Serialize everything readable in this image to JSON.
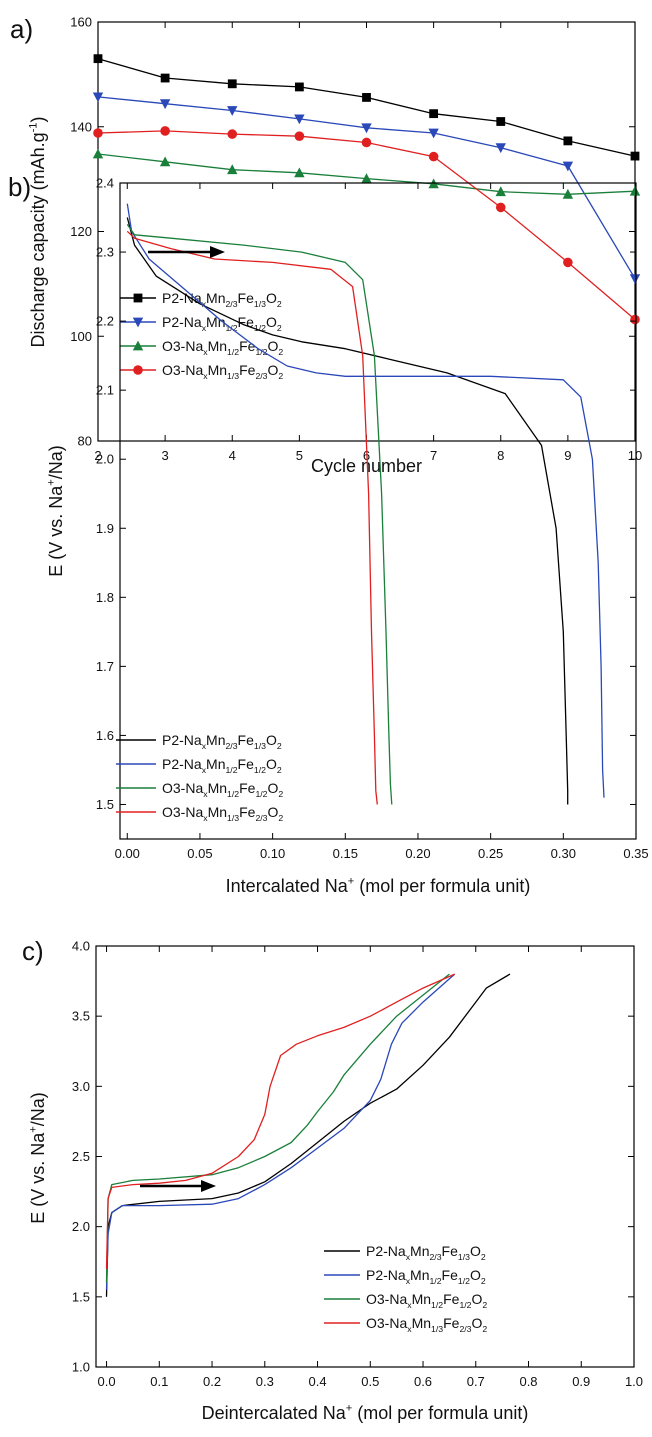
{
  "chart_data": [
    {
      "type": "line",
      "panel_label": "a)",
      "xlabel": "Cycle number",
      "ylabel": "Discharge capacity (mAh.g⁻¹)",
      "xlim": [
        2,
        10
      ],
      "ylim": [
        80,
        160
      ],
      "xticks": [
        2,
        3,
        4,
        5,
        6,
        7,
        8,
        9,
        10
      ],
      "yticks": [
        80,
        100,
        120,
        140,
        160
      ],
      "legend_position": "lower-left",
      "series": [
        {
          "name": "P2-NaₓMn₂/₃Fe₁/₃O₂",
          "color": "#000000",
          "marker": "square",
          "x": [
            2,
            3,
            4,
            5,
            6,
            7,
            8,
            9,
            10
          ],
          "y": [
            153,
            149.3,
            148.2,
            147.6,
            145.6,
            142.5,
            141.0,
            137.3,
            134.4
          ]
        },
        {
          "name": "P2-NaₓMn₁/₂Fe₁/₂O₂",
          "color": "#2a48b8",
          "marker": "triangle-down",
          "x": [
            2,
            3,
            4,
            5,
            6,
            7,
            8,
            9,
            10
          ],
          "y": [
            145.7,
            144.4,
            143.1,
            141.5,
            139.8,
            138.8,
            136.0,
            132.5,
            111.0
          ]
        },
        {
          "name": "O3-NaₓMn₁/₂Fe₁/₂O₂",
          "color": "#1a7f3a",
          "marker": "triangle-up",
          "x": [
            2,
            3,
            4,
            5,
            6,
            7,
            8,
            9,
            10
          ],
          "y": [
            134.8,
            133.3,
            131.8,
            131.2,
            130.1,
            129.1,
            127.6,
            127.1,
            127.7
          ]
        },
        {
          "name": "O3-NaₓMn₁/₃Fe₂/₃O₂",
          "color": "#e02020",
          "marker": "circle",
          "x": [
            2,
            3,
            4,
            5,
            6,
            7,
            8,
            9,
            10
          ],
          "y": [
            138.8,
            139.2,
            138.6,
            138.2,
            137.0,
            134.3,
            124.6,
            114.1,
            103.2
          ]
        }
      ]
    },
    {
      "type": "line",
      "panel_label": "b)",
      "xlabel": "Intercalated Na⁺ (mol per formula unit)",
      "ylabel": "E (V vs. Na⁺/Na)",
      "xlim": [
        -0.005,
        0.35
      ],
      "ylim": [
        1.45,
        2.4
      ],
      "xticks": [
        0.0,
        0.05,
        0.1,
        0.15,
        0.2,
        0.25,
        0.3,
        0.35
      ],
      "yticks": [
        1.5,
        1.6,
        1.7,
        1.8,
        1.9,
        2.0,
        2.1,
        2.2,
        2.3,
        2.4
      ],
      "legend_position": "lower-left",
      "annotations": [
        "arrow pointing right"
      ],
      "series": [
        {
          "name": "P2-NaₓMn₂/₃Fe₁/₃O₂",
          "color": "#000000",
          "x": [
            0,
            0.005,
            0.02,
            0.05,
            0.08,
            0.1,
            0.12,
            0.15,
            0.18,
            0.22,
            0.26,
            0.285,
            0.295,
            0.3,
            0.302,
            0.303,
            0.303
          ],
          "y": [
            2.35,
            2.31,
            2.265,
            2.225,
            2.195,
            2.18,
            2.17,
            2.16,
            2.145,
            2.125,
            2.095,
            2.02,
            1.9,
            1.75,
            1.6,
            1.52,
            1.5
          ]
        },
        {
          "name": "P2-NaₓMn₁/₂Fe₁/₂O₂",
          "color": "#2a48b8",
          "x": [
            0,
            0.003,
            0.015,
            0.04,
            0.065,
            0.09,
            0.11,
            0.13,
            0.15,
            0.2,
            0.25,
            0.3,
            0.312,
            0.32,
            0.324,
            0.326,
            0.327,
            0.328
          ],
          "y": [
            2.37,
            2.33,
            2.29,
            2.245,
            2.2,
            2.16,
            2.135,
            2.125,
            2.12,
            2.12,
            2.12,
            2.115,
            2.09,
            2.0,
            1.85,
            1.7,
            1.55,
            1.51
          ]
        },
        {
          "name": "O3-NaₓMn₁/₂Fe₁/₂O₂",
          "color": "#1a7f3a",
          "x": [
            0,
            0.005,
            0.03,
            0.08,
            0.12,
            0.15,
            0.162,
            0.17,
            0.175,
            0.178,
            0.18,
            0.181,
            0.182
          ],
          "y": [
            2.34,
            2.325,
            2.32,
            2.31,
            2.3,
            2.285,
            2.26,
            2.15,
            1.95,
            1.75,
            1.6,
            1.53,
            1.5
          ]
        },
        {
          "name": "O3-NaₓMn₁/₃Fe₂/₃O₂",
          "color": "#e02020",
          "x": [
            0,
            0.005,
            0.03,
            0.06,
            0.1,
            0.14,
            0.155,
            0.162,
            0.166,
            0.168,
            0.17,
            0.171,
            0.172
          ],
          "y": [
            2.33,
            2.32,
            2.305,
            2.29,
            2.285,
            2.275,
            2.25,
            2.15,
            1.95,
            1.75,
            1.6,
            1.52,
            1.5
          ]
        }
      ]
    },
    {
      "type": "line",
      "panel_label": "c)",
      "xlabel": "Deintercalated Na⁺ (mol per formula unit)",
      "ylabel": "E (V vs. Na⁺/Na)",
      "xlim": [
        -0.02,
        1.0
      ],
      "ylim": [
        1.0,
        4.0
      ],
      "xticks": [
        0.0,
        0.1,
        0.2,
        0.3,
        0.4,
        0.5,
        0.6,
        0.7,
        0.8,
        0.9,
        1.0
      ],
      "yticks": [
        1.0,
        1.5,
        2.0,
        2.5,
        3.0,
        3.5,
        4.0
      ],
      "legend_position": "lower-right",
      "annotations": [
        "arrow pointing right"
      ],
      "series": [
        {
          "name": "P2-NaₓMn₂/₃Fe₁/₃O₂",
          "color": "#000000",
          "x": [
            0,
            0.003,
            0.01,
            0.03,
            0.1,
            0.2,
            0.25,
            0.3,
            0.35,
            0.4,
            0.45,
            0.5,
            0.55,
            0.6,
            0.65,
            0.7,
            0.72,
            0.765
          ],
          "y": [
            1.5,
            2.0,
            2.1,
            2.15,
            2.18,
            2.2,
            2.24,
            2.32,
            2.45,
            2.6,
            2.75,
            2.88,
            2.98,
            3.15,
            3.35,
            3.6,
            3.7,
            3.8
          ]
        },
        {
          "name": "P2-NaₓMn₁/₂Fe₁/₂O₂",
          "color": "#2a48b8",
          "x": [
            0,
            0.003,
            0.01,
            0.03,
            0.1,
            0.2,
            0.25,
            0.3,
            0.35,
            0.4,
            0.45,
            0.5,
            0.52,
            0.54,
            0.56,
            0.6,
            0.66
          ],
          "y": [
            1.55,
            1.95,
            2.1,
            2.15,
            2.15,
            2.16,
            2.2,
            2.3,
            2.42,
            2.56,
            2.7,
            2.9,
            3.05,
            3.3,
            3.45,
            3.6,
            3.8
          ]
        },
        {
          "name": "O3-NaₓMn₁/₂Fe₁/₂O₂",
          "color": "#1a7f3a",
          "x": [
            0,
            0.003,
            0.01,
            0.05,
            0.1,
            0.2,
            0.25,
            0.3,
            0.35,
            0.38,
            0.4,
            0.43,
            0.45,
            0.5,
            0.55,
            0.6,
            0.65
          ],
          "y": [
            1.6,
            2.2,
            2.3,
            2.33,
            2.34,
            2.37,
            2.42,
            2.5,
            2.6,
            2.72,
            2.82,
            2.96,
            3.08,
            3.3,
            3.5,
            3.65,
            3.8
          ]
        },
        {
          "name": "O3-NaₓMn₁/₃Fe₂/₃O₂",
          "color": "#e02020",
          "x": [
            0,
            0.003,
            0.01,
            0.05,
            0.1,
            0.15,
            0.2,
            0.25,
            0.28,
            0.3,
            0.31,
            0.33,
            0.36,
            0.4,
            0.45,
            0.5,
            0.55,
            0.6,
            0.66
          ],
          "y": [
            1.7,
            2.2,
            2.28,
            2.3,
            2.31,
            2.33,
            2.38,
            2.5,
            2.62,
            2.8,
            3.0,
            3.22,
            3.3,
            3.36,
            3.42,
            3.5,
            3.6,
            3.7,
            3.8
          ]
        }
      ]
    }
  ]
}
